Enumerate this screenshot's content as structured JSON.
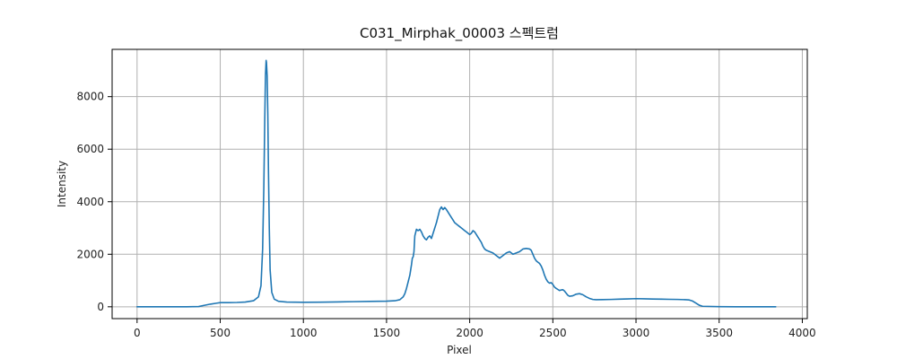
{
  "chart_data": {
    "type": "line",
    "title": "C031_Mirphak_00003 스펙트럼",
    "xlabel": "Pixel",
    "ylabel": "Intensity",
    "xlim": [
      -150,
      4030
    ],
    "ylim": [
      -450,
      9800
    ],
    "xticks": [
      0,
      500,
      1000,
      1500,
      2000,
      2500,
      3000,
      3500,
      4000
    ],
    "yticks": [
      0,
      2000,
      4000,
      6000,
      8000
    ],
    "xtick_labels": [
      "0",
      "500",
      "1000",
      "1500",
      "2000",
      "2500",
      "3000",
      "3500",
      "4000"
    ],
    "ytick_labels": [
      "0",
      "2000",
      "4000",
      "6000",
      "8000"
    ],
    "grid": true,
    "series": [
      {
        "color": "#1f77b4",
        "x": [
          0,
          100,
          200,
          300,
          370,
          400,
          440,
          480,
          500,
          550,
          600,
          650,
          700,
          730,
          745,
          755,
          762,
          768,
          772,
          776,
          778,
          782,
          786,
          790,
          795,
          800,
          810,
          825,
          850,
          900,
          1000,
          1100,
          1200,
          1300,
          1400,
          1500,
          1550,
          1580,
          1600,
          1610,
          1620,
          1630,
          1640,
          1650,
          1655,
          1660,
          1665,
          1670,
          1680,
          1690,
          1700,
          1710,
          1720,
          1730,
          1740,
          1750,
          1760,
          1770,
          1780,
          1790,
          1800,
          1810,
          1820,
          1830,
          1840,
          1850,
          1860,
          1870,
          1880,
          1890,
          1900,
          1910,
          1920,
          1930,
          1940,
          1950,
          1960,
          1970,
          1980,
          1990,
          2000,
          2010,
          2020,
          2030,
          2040,
          2050,
          2060,
          2070,
          2080,
          2090,
          2100,
          2120,
          2140,
          2160,
          2180,
          2200,
          2220,
          2240,
          2260,
          2280,
          2300,
          2320,
          2340,
          2360,
          2370,
          2380,
          2390,
          2400,
          2410,
          2420,
          2430,
          2440,
          2450,
          2460,
          2470,
          2480,
          2490,
          2500,
          2510,
          2520,
          2530,
          2540,
          2550,
          2560,
          2570,
          2580,
          2590,
          2600,
          2620,
          2640,
          2660,
          2680,
          2700,
          2720,
          2740,
          2760,
          2800,
          2850,
          2900,
          2950,
          3000,
          3050,
          3100,
          3150,
          3200,
          3250,
          3300,
          3320,
          3340,
          3360,
          3380,
          3400,
          3500,
          3600,
          3700,
          3800,
          3840
        ],
        "y": [
          0,
          0,
          0,
          0,
          10,
          50,
          100,
          140,
          160,
          160,
          165,
          180,
          230,
          380,
          800,
          2200,
          4500,
          7200,
          8800,
          9380,
          9300,
          8800,
          7400,
          5200,
          3000,
          1400,
          550,
          290,
          210,
          180,
          170,
          175,
          185,
          195,
          205,
          215,
          230,
          270,
          380,
          500,
          700,
          950,
          1200,
          1600,
          1850,
          1900,
          2100,
          2700,
          2950,
          2900,
          2950,
          2850,
          2700,
          2600,
          2550,
          2650,
          2700,
          2600,
          2800,
          3000,
          3200,
          3450,
          3700,
          3800,
          3700,
          3780,
          3700,
          3600,
          3500,
          3400,
          3300,
          3200,
          3150,
          3100,
          3050,
          3000,
          2950,
          2900,
          2850,
          2800,
          2750,
          2800,
          2900,
          2850,
          2750,
          2650,
          2550,
          2450,
          2300,
          2200,
          2150,
          2100,
          2050,
          1950,
          1850,
          1950,
          2050,
          2100,
          2000,
          2050,
          2100,
          2200,
          2220,
          2200,
          2150,
          2000,
          1850,
          1750,
          1700,
          1650,
          1550,
          1400,
          1200,
          1050,
          950,
          900,
          920,
          850,
          750,
          700,
          660,
          620,
          640,
          650,
          600,
          520,
          440,
          400,
          420,
          480,
          500,
          460,
          380,
          320,
          280,
          270,
          275,
          280,
          290,
          300,
          310,
          305,
          295,
          290,
          285,
          280,
          270,
          260,
          220,
          140,
          60,
          20,
          5,
          0,
          0,
          0,
          0
        ]
      }
    ]
  }
}
